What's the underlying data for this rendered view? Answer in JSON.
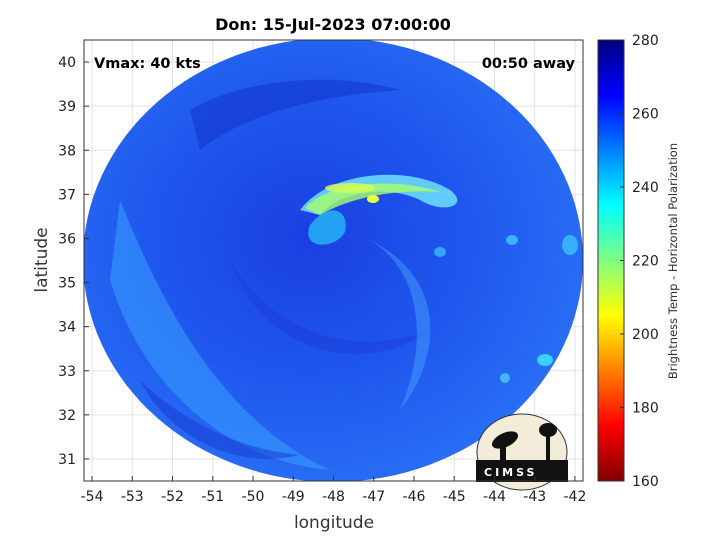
{
  "chart_data": {
    "type": "heatmap",
    "title": "Don: 15-Jul-2023 07:00:00",
    "xlabel": "longitude",
    "ylabel": "latitude",
    "xlim": [
      -54.2,
      -41.8
    ],
    "ylim": [
      30.5,
      40.5
    ],
    "xticks": [
      -54,
      -53,
      -52,
      -51,
      -50,
      -49,
      -48,
      -47,
      -46,
      -45,
      -44,
      -43,
      -42
    ],
    "yticks": [
      31,
      32,
      33,
      34,
      35,
      36,
      37,
      38,
      39,
      40
    ],
    "grid": true,
    "annotations": {
      "vmax": "Vmax: 40 kts",
      "away": "00:50 away"
    },
    "colorbar": {
      "label": "Brightness Temp - Horizontal Polarization",
      "range": [
        160,
        280
      ],
      "ticks": [
        160,
        180,
        200,
        220,
        240,
        260,
        280
      ],
      "colormap": "jet",
      "colors": [
        "#800000",
        "#ff0000",
        "#ff8000",
        "#ffff00",
        "#80ff80",
        "#00ffff",
        "#0080ff",
        "#0000ff",
        "#000080"
      ]
    },
    "swath": {
      "center_lon": -48.0,
      "center_lat": 35.5,
      "fill_value": 252
    }
  },
  "logo": {
    "text": "CIMSS"
  }
}
